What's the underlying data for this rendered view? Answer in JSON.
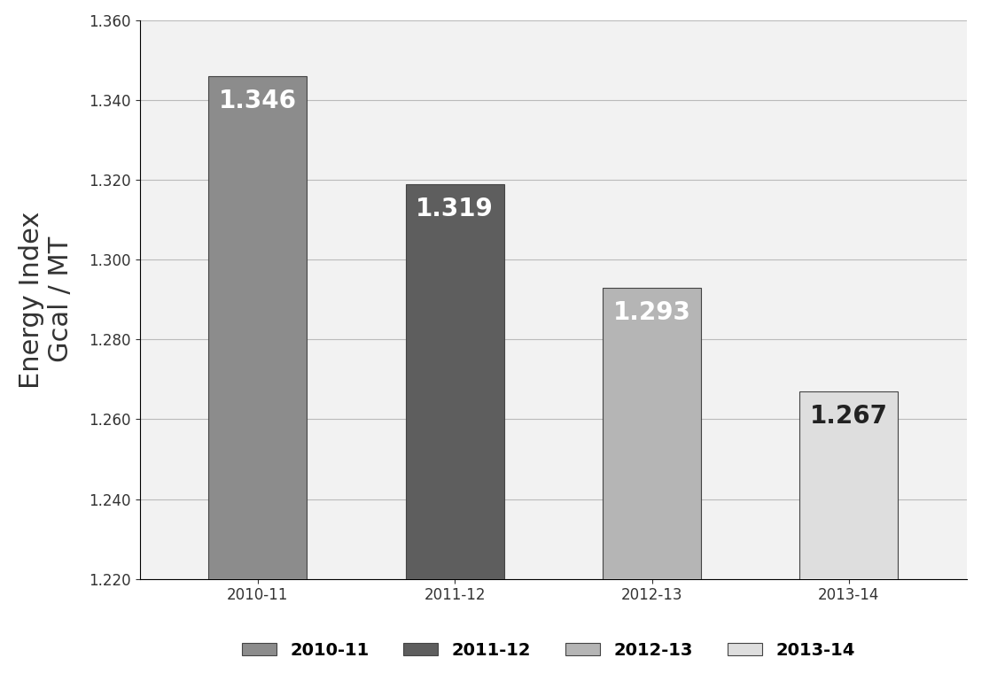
{
  "chart_data": {
    "type": "bar",
    "y_label": "Energy Index\nGcal / MT",
    "categories": [
      "2010-11",
      "2011-12",
      "2012-13",
      "2013-14"
    ],
    "series": [
      {
        "name": "2010-11",
        "color": "#8c8c8c",
        "values": [
          1.346,
          null,
          null,
          null
        ]
      },
      {
        "name": "2011-12",
        "color": "#5e5e5e",
        "values": [
          null,
          1.319,
          null,
          null
        ]
      },
      {
        "name": "2012-13",
        "color": "#b5b5b5",
        "values": [
          null,
          null,
          1.293,
          null
        ]
      },
      {
        "name": "2013-14",
        "color": "#dedede",
        "values": [
          null,
          null,
          null,
          1.267
        ]
      }
    ],
    "ylim": [
      1.22,
      1.36
    ],
    "yticks": [
      {
        "value": 1.22,
        "label": "1.220"
      },
      {
        "value": 1.24,
        "label": "1.240"
      },
      {
        "value": 1.26,
        "label": "1.260"
      },
      {
        "value": 1.28,
        "label": "1.280"
      },
      {
        "value": 1.3,
        "label": "1.300"
      },
      {
        "value": 1.32,
        "label": "1.320"
      },
      {
        "value": 1.34,
        "label": "1.340"
      },
      {
        "value": 1.36,
        "label": "1.360"
      }
    ],
    "grid": true,
    "data_labels": true,
    "legend": "lower center"
  }
}
